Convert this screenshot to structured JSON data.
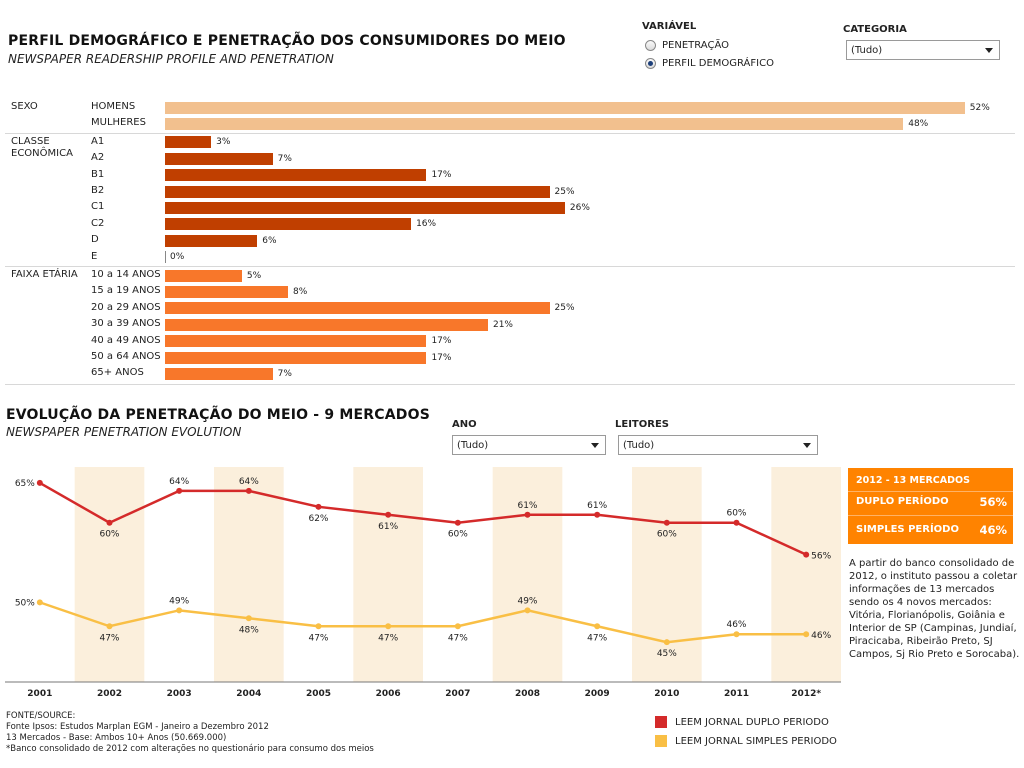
{
  "header": {
    "title": "PERFIL DEMOGRÁFICO E PENETRAÇÃO DOS CONSUMIDORES DO MEIO",
    "subtitle": "NEWSPAPER READERSHIP PROFILE AND PENETRATION"
  },
  "controls": {
    "variavel_label": "VARIÁVEL",
    "options": [
      "PENETRAÇÃO",
      "PERFIL DEMOGRÁFICO"
    ],
    "selected_option": "PERFIL DEMOGRÁFICO",
    "categoria_label": "CATEGORIA",
    "categoria_value": "(Tudo)"
  },
  "profile": {
    "groups": [
      {
        "label": "SEXO",
        "color": "#f2c08e",
        "rows": [
          {
            "label": "HOMENS",
            "value": 52,
            "text": "52%"
          },
          {
            "label": "MULHERES",
            "value": 48,
            "text": "48%"
          }
        ]
      },
      {
        "label": "CLASSE ECONÔMICA",
        "color": "#c03f00",
        "rows": [
          {
            "label": "A1",
            "value": 3,
            "text": "3%"
          },
          {
            "label": "A2",
            "value": 7,
            "text": "7%"
          },
          {
            "label": "B1",
            "value": 17,
            "text": "17%"
          },
          {
            "label": "B2",
            "value": 25,
            "text": "25%"
          },
          {
            "label": "C1",
            "value": 26,
            "text": "26%"
          },
          {
            "label": "C2",
            "value": 16,
            "text": "16%"
          },
          {
            "label": "D",
            "value": 6,
            "text": "6%"
          },
          {
            "label": "E",
            "value": 0,
            "text": "0%"
          }
        ]
      },
      {
        "label": "FAIXA ETÁRIA",
        "color": "#f8772a",
        "rows": [
          {
            "label": "10 a 14 ANOS",
            "value": 5,
            "text": "5%"
          },
          {
            "label": "15 a 19 ANOS",
            "value": 8,
            "text": "8%"
          },
          {
            "label": "20 a 29 ANOS",
            "value": 25,
            "text": "25%"
          },
          {
            "label": "30 a 39 ANOS",
            "value": 21,
            "text": "21%"
          },
          {
            "label": "40 a 49 ANOS",
            "value": 17,
            "text": "17%"
          },
          {
            "label": "50 a 64 ANOS",
            "value": 17,
            "text": "17%"
          },
          {
            "label": "65+ ANOS",
            "value": 7,
            "text": "7%"
          }
        ]
      }
    ]
  },
  "evolution": {
    "title": "EVOLUÇÃO DA PENETRAÇÃO DO MEIO - 9 MERCADOS",
    "subtitle": "NEWSPAPER PENETRATION EVOLUTION",
    "ano_label": "ANO",
    "ano_value": "(Tudo)",
    "leitores_label": "LEITORES",
    "leitores_value": "(Tudo)"
  },
  "chart_data": [
    {
      "type": "bar",
      "orientation": "horizontal",
      "categories": [
        "HOMENS",
        "MULHERES",
        "A1",
        "A2",
        "B1",
        "B2",
        "C1",
        "C2",
        "D",
        "E",
        "10 a 14 ANOS",
        "15 a 19 ANOS",
        "20 a 29 ANOS",
        "30 a 39 ANOS",
        "40 a 49 ANOS",
        "50 a 64 ANOS",
        "65+ ANOS"
      ],
      "values": [
        52,
        48,
        3,
        7,
        17,
        25,
        26,
        16,
        6,
        0,
        5,
        8,
        25,
        21,
        17,
        17,
        7
      ],
      "title": "PERFIL DEMOGRÁFICO E PENETRAÇÃO DOS CONSUMIDORES DO MEIO"
    },
    {
      "type": "line",
      "title": "EVOLUÇÃO DA PENETRAÇÃO DO MEIO - 9 MERCADOS",
      "x": [
        "2001",
        "2002",
        "2003",
        "2004",
        "2005",
        "2006",
        "2007",
        "2008",
        "2009",
        "2010",
        "2011",
        "2012*"
      ],
      "ylim": [
        40,
        67
      ],
      "series": [
        {
          "name": "LEEM JORNAL DUPLO PERIODO",
          "color": "#d42a2a",
          "values": [
            65,
            60,
            64,
            64,
            62,
            61,
            60,
            61,
            61,
            60,
            60,
            56
          ]
        },
        {
          "name": "LEEM JORNAL SIMPLES PERIODO",
          "color": "#f9bf45",
          "values": [
            50,
            47,
            49,
            48,
            47,
            47,
            47,
            49,
            47,
            45,
            46,
            46
          ]
        }
      ],
      "label_position": {
        "dup": [
          "left",
          "below",
          "above",
          "above",
          "below",
          "below",
          "below",
          "above",
          "above",
          "below",
          "above",
          "right"
        ],
        "sim": [
          "left",
          "below",
          "above",
          "below",
          "below",
          "below",
          "below",
          "above",
          "below",
          "below",
          "above",
          "right"
        ]
      }
    }
  ],
  "info": {
    "header": "2012 - 13 MERCADOS",
    "rows": [
      {
        "label": "DUPLO PERÍODO",
        "value": "56%"
      },
      {
        "label": "SIMPLES PERÍODO",
        "value": "46%"
      }
    ],
    "text": "A partir do banco consolidado de 2012, o instituto passou a coletar informações de 13 mercados sendo os 4 novos mercados: Vitória, Florianópolis, Goiânia e Interior de SP (Campinas, Jundiaí, Piracicaba, Ribeirão Preto, SJ Campos, Sj Rio Preto e Sorocaba)."
  },
  "footer": {
    "notes": [
      "FONTE/SOURCE:",
      "Fonte Ipsos: Estudos Marplan EGM - Janeiro a Dezembro 2012",
      "13 Mercados - Base: Ambos 10+ Anos (50.669.000)",
      "*Banco consolidado de 2012 com alterações no questionário para consumo dos meios"
    ],
    "legend": [
      {
        "label": "LEEM JORNAL DUPLO PERIODO",
        "color": "#d42a2a"
      },
      {
        "label": "LEEM JORNAL SIMPLES PERIODO",
        "color": "#f9bf45"
      }
    ]
  }
}
